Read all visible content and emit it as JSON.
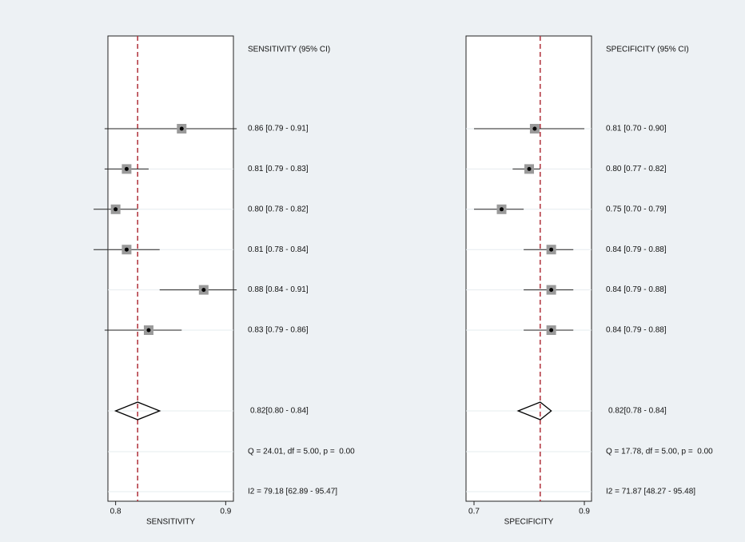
{
  "chart_data": [
    {
      "type": "forest",
      "column_header": "SENSITIVITY (95% CI)",
      "xlabel": "SENSITIVITY",
      "xlim": [
        0.793,
        0.907
      ],
      "xticks": [
        0.8,
        0.9
      ],
      "estimates": [
        0.86,
        0.81,
        0.8,
        0.81,
        0.88,
        0.83
      ],
      "lower": [
        0.79,
        0.79,
        0.78,
        0.78,
        0.84,
        0.79
      ],
      "upper": [
        0.91,
        0.83,
        0.82,
        0.84,
        0.91,
        0.86
      ],
      "value_labels": [
        "0.86 [0.79 - 0.91]",
        "0.81 [0.79 - 0.83]",
        "0.80 [0.78 - 0.82]",
        "0.81 [0.78 - 0.84]",
        "0.88 [0.84 - 0.91]",
        "0.83 [0.79 - 0.86]"
      ],
      "pooled": {
        "estimate": 0.82,
        "lower": 0.8,
        "upper": 0.84,
        "value_label": "0.82[0.80 - 0.84]"
      },
      "heterogeneity": [
        "Q = 24.01, df = 5.00, p =  0.00",
        "I2 = 79.18 [62.89 - 95.47]"
      ],
      "line_color": "#b0303a",
      "marker_color": "#9a9a9a"
    },
    {
      "type": "forest",
      "column_header": "SPECIFICITY (95% CI)",
      "xlabel": "SPECIFICITY",
      "xlim": [
        0.6855,
        0.913
      ],
      "xticks": [
        0.7,
        0.9
      ],
      "estimates": [
        0.81,
        0.8,
        0.75,
        0.84,
        0.84,
        0.84
      ],
      "lower": [
        0.7,
        0.77,
        0.7,
        0.79,
        0.79,
        0.79
      ],
      "upper": [
        0.9,
        0.82,
        0.79,
        0.88,
        0.88,
        0.88
      ],
      "value_labels": [
        "0.81 [0.70 - 0.90]",
        "0.80 [0.77 - 0.82]",
        "0.75 [0.70 - 0.79]",
        "0.84 [0.79 - 0.88]",
        "0.84 [0.79 - 0.88]",
        "0.84 [0.79 - 0.88]"
      ],
      "pooled": {
        "estimate": 0.82,
        "lower": 0.78,
        "upper": 0.84,
        "value_label": "0.82[0.78 - 0.84]"
      },
      "heterogeneity": [
        "Q = 17.78, df = 5.00, p =  0.00",
        "I2 = 71.87 [48.27 - 95.48]"
      ],
      "line_color": "#b0303a",
      "marker_color": "#9a9a9a"
    }
  ]
}
